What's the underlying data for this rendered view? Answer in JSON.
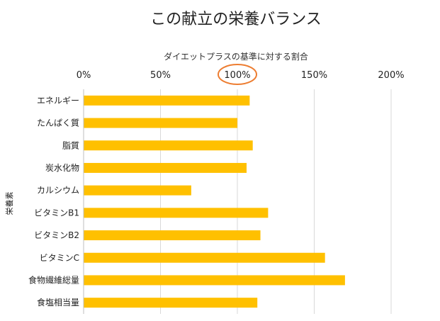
{
  "chart_data": {
    "type": "bar",
    "orientation": "horizontal",
    "title": "この献立の栄養バランス",
    "xlabel": "ダイエットプラスの基準に対する割合",
    "ylabel": "栄養素",
    "categories": [
      "エネルギー",
      "たんぱく質",
      "脂質",
      "炭水化物",
      "カルシウム",
      "ビタミンB1",
      "ビタミンB2",
      "ビタミンC",
      "食物繊維総量",
      "食塩相当量"
    ],
    "values": [
      108,
      100,
      110,
      106,
      70,
      120,
      115,
      157,
      170,
      113
    ],
    "xlim": [
      0,
      200
    ],
    "x_ticks": [
      "0%",
      "50%",
      "100%",
      "150%",
      "200%"
    ],
    "x_tick_values": [
      0,
      50,
      100,
      150,
      200
    ],
    "highlight_tick": "100%",
    "grid": true,
    "axis_position": "top",
    "bar_color": "#FFC000",
    "highlight_color": "#ED7D31",
    "grid_color": "#D9D9D9"
  }
}
